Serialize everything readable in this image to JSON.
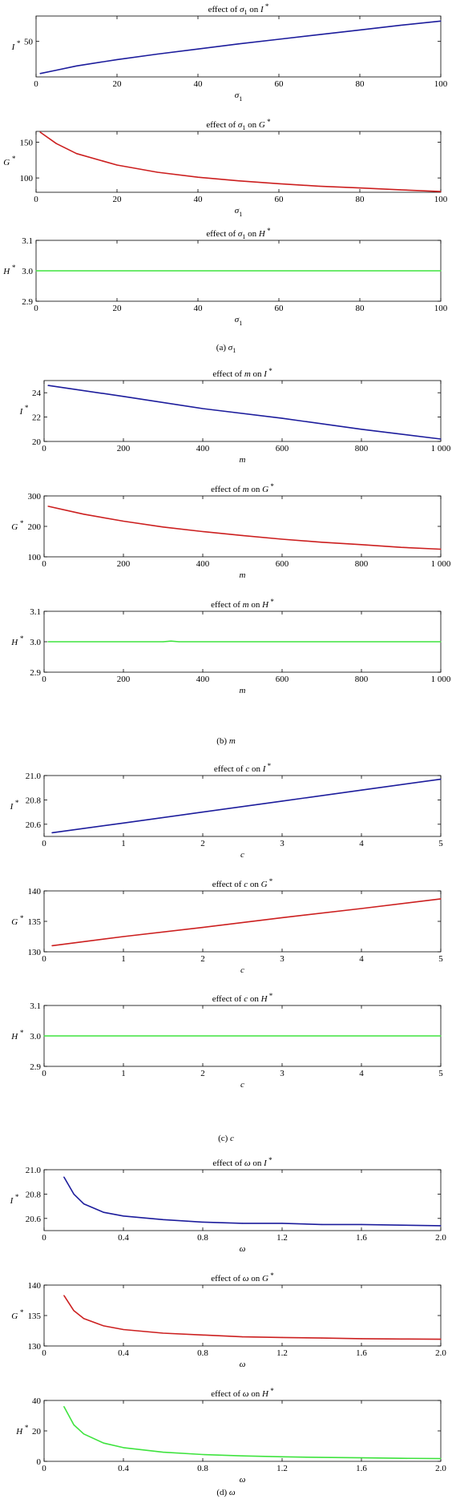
{
  "subfigures": [
    {
      "caption": "(a) σ1"
    },
    {
      "caption": "(b) m"
    },
    {
      "caption": "(c) c"
    },
    {
      "caption": "(d) ω"
    }
  ],
  "chart_data": [
    {
      "type": "line",
      "title": "effect of σ1 on I*",
      "xlabel": "σ1",
      "ylabel": "I*",
      "xlim": [
        0,
        100
      ],
      "ylim": [
        8,
        80
      ],
      "xticks": [
        "0",
        "20",
        "40",
        "60",
        "80",
        "100"
      ],
      "yticks": [
        "50"
      ],
      "grid": false,
      "series": [
        {
          "color": "#1c1c9c",
          "x": [
            1,
            5,
            10,
            20,
            30,
            40,
            50,
            60,
            70,
            80,
            90,
            100
          ],
          "y": [
            12,
            16,
            21,
            28.5,
            35,
            41,
            47,
            52.5,
            58,
            63.5,
            69,
            74
          ]
        }
      ]
    },
    {
      "type": "line",
      "title": "effect of σ1 on G*",
      "xlabel": "σ1",
      "ylabel": "G*",
      "xlim": [
        0,
        100
      ],
      "ylim": [
        80,
        165
      ],
      "xticks": [
        "0",
        "20",
        "40",
        "60",
        "80",
        "100"
      ],
      "yticks": [
        "100",
        "150"
      ],
      "grid": false,
      "series": [
        {
          "color": "#cc1f1f",
          "x": [
            1,
            5,
            10,
            20,
            30,
            40,
            50,
            60,
            70,
            80,
            90,
            100
          ],
          "y": [
            164,
            148,
            134,
            118,
            108,
            101,
            96,
            92,
            88.5,
            86,
            83.5,
            81
          ]
        }
      ]
    },
    {
      "type": "line",
      "title": "effect of σ1 on H*",
      "xlabel": "σ1",
      "ylabel": "H*",
      "xlim": [
        0,
        100
      ],
      "ylim": [
        2.9,
        3.1
      ],
      "xticks": [
        "0",
        "20",
        "40",
        "60",
        "80",
        "100"
      ],
      "yticks": [
        "2.9",
        "3.0",
        "3.1"
      ],
      "grid": false,
      "series": [
        {
          "color": "#3ee33e",
          "x": [
            0,
            100
          ],
          "y": [
            3.0,
            3.0
          ]
        }
      ]
    },
    {
      "type": "line",
      "title": "effect of m on I*",
      "xlabel": "m",
      "ylabel": "I*",
      "xlim": [
        0,
        1000
      ],
      "ylim": [
        20,
        25
      ],
      "xticks": [
        "0",
        "200",
        "400",
        "600",
        "800",
        "1 000"
      ],
      "yticks": [
        "20",
        "22",
        "24"
      ],
      "grid": false,
      "series": [
        {
          "color": "#1c1c9c",
          "x": [
            10,
            200,
            400,
            600,
            800,
            1000
          ],
          "y": [
            24.6,
            23.7,
            22.7,
            21.9,
            21.0,
            20.2
          ]
        }
      ]
    },
    {
      "type": "line",
      "title": "effect of m on G*",
      "xlabel": "m",
      "ylabel": "G*",
      "xlim": [
        0,
        1000
      ],
      "ylim": [
        100,
        300
      ],
      "xticks": [
        "0",
        "200",
        "400",
        "600",
        "800",
        "1 000"
      ],
      "yticks": [
        "100",
        "200",
        "300"
      ],
      "grid": false,
      "series": [
        {
          "color": "#cc1f1f",
          "x": [
            10,
            100,
            200,
            300,
            400,
            500,
            600,
            700,
            800,
            900,
            1000
          ],
          "y": [
            266,
            240,
            217,
            198,
            183,
            170,
            158,
            148,
            140,
            131,
            125
          ]
        }
      ]
    },
    {
      "type": "line",
      "title": "effect of m on H*",
      "xlabel": "m",
      "ylabel": "H*",
      "xlim": [
        0,
        1000
      ],
      "ylim": [
        2.9,
        3.1
      ],
      "xticks": [
        "0",
        "200",
        "400",
        "600",
        "800",
        "1 000"
      ],
      "yticks": [
        "2.9",
        "3.0",
        "3.1"
      ],
      "grid": false,
      "series": [
        {
          "color": "#3ee33e",
          "x": [
            10,
            300,
            320,
            340,
            1000
          ],
          "y": [
            3.0,
            3.0,
            3.002,
            3.0,
            3.0
          ]
        }
      ]
    },
    {
      "type": "line",
      "title": "effect of c on I*",
      "xlabel": "c",
      "ylabel": "I*",
      "xlim": [
        0,
        5
      ],
      "ylim": [
        20.5,
        21.0
      ],
      "xticks": [
        "0",
        "1",
        "2",
        "3",
        "4",
        "5"
      ],
      "yticks": [
        "20.6",
        "20.8",
        "21.0"
      ],
      "grid": false,
      "series": [
        {
          "color": "#1c1c9c",
          "x": [
            0.1,
            1,
            2,
            3,
            4,
            5
          ],
          "y": [
            20.53,
            20.61,
            20.7,
            20.79,
            20.88,
            20.97
          ]
        }
      ]
    },
    {
      "type": "line",
      "title": "effect of c on G*",
      "xlabel": "c",
      "ylabel": "G*",
      "xlim": [
        0,
        5
      ],
      "ylim": [
        130,
        140
      ],
      "xticks": [
        "0",
        "1",
        "2",
        "3",
        "4",
        "5"
      ],
      "yticks": [
        "130",
        "135",
        "140"
      ],
      "grid": false,
      "series": [
        {
          "color": "#cc1f1f",
          "x": [
            0.1,
            1,
            2,
            3,
            4,
            5
          ],
          "y": [
            131,
            132.5,
            134,
            135.6,
            137.1,
            138.7
          ]
        }
      ]
    },
    {
      "type": "line",
      "title": "effect of c on H*",
      "xlabel": "c",
      "ylabel": "H*",
      "xlim": [
        0,
        5
      ],
      "ylim": [
        2.9,
        3.1
      ],
      "xticks": [
        "0",
        "1",
        "2",
        "3",
        "4",
        "5"
      ],
      "yticks": [
        "2.9",
        "3.0",
        "3.1"
      ],
      "grid": false,
      "series": [
        {
          "color": "#3ee33e",
          "x": [
            0,
            5
          ],
          "y": [
            3.0,
            3.0
          ]
        }
      ]
    },
    {
      "type": "line",
      "title": "effect of ω on I*",
      "xlabel": "ω",
      "ylabel": "I*",
      "xlim": [
        0,
        2.0
      ],
      "ylim": [
        20.5,
        21.0
      ],
      "xticks": [
        "0",
        "0.4",
        "0.8",
        "1.2",
        "1.6",
        "2.0"
      ],
      "yticks": [
        "20.6",
        "20.8",
        "21.0"
      ],
      "grid": false,
      "series": [
        {
          "color": "#1c1c9c",
          "x": [
            0.1,
            0.15,
            0.2,
            0.3,
            0.4,
            0.6,
            0.8,
            1.0,
            1.2,
            1.4,
            1.6,
            1.8,
            2.0
          ],
          "y": [
            20.94,
            20.8,
            20.72,
            20.65,
            20.62,
            20.59,
            20.57,
            20.56,
            20.56,
            20.55,
            20.55,
            20.545,
            20.54
          ]
        }
      ]
    },
    {
      "type": "line",
      "title": "effect of ω on G*",
      "xlabel": "ω",
      "ylabel": "G*",
      "xlim": [
        0,
        2.0
      ],
      "ylim": [
        130,
        140
      ],
      "xticks": [
        "0",
        "0.4",
        "0.8",
        "1.2",
        "1.6",
        "2.0"
      ],
      "yticks": [
        "130",
        "135",
        "140"
      ],
      "grid": false,
      "series": [
        {
          "color": "#cc1f1f",
          "x": [
            0.1,
            0.15,
            0.2,
            0.3,
            0.4,
            0.6,
            0.8,
            1.0,
            1.2,
            1.4,
            1.6,
            1.8,
            2.0
          ],
          "y": [
            138.3,
            135.8,
            134.5,
            133.3,
            132.7,
            132.1,
            131.8,
            131.5,
            131.4,
            131.3,
            131.2,
            131.15,
            131.1
          ]
        }
      ]
    },
    {
      "type": "line",
      "title": "effect of ω on H*",
      "xlabel": "ω",
      "ylabel": "H*",
      "xlim": [
        0,
        2.0
      ],
      "ylim": [
        0,
        40
      ],
      "xticks": [
        "0",
        "0.4",
        "0.8",
        "1.2",
        "1.6",
        "2.0"
      ],
      "yticks": [
        "0",
        "20",
        "40"
      ],
      "grid": false,
      "series": [
        {
          "color": "#3ee33e",
          "x": [
            0.1,
            0.15,
            0.2,
            0.3,
            0.4,
            0.6,
            0.8,
            1.0,
            1.2,
            1.4,
            1.6,
            1.8,
            2.0
          ],
          "y": [
            36,
            24,
            18,
            12,
            9,
            6,
            4.5,
            3.6,
            3,
            2.6,
            2.3,
            2,
            1.8
          ]
        }
      ]
    }
  ]
}
